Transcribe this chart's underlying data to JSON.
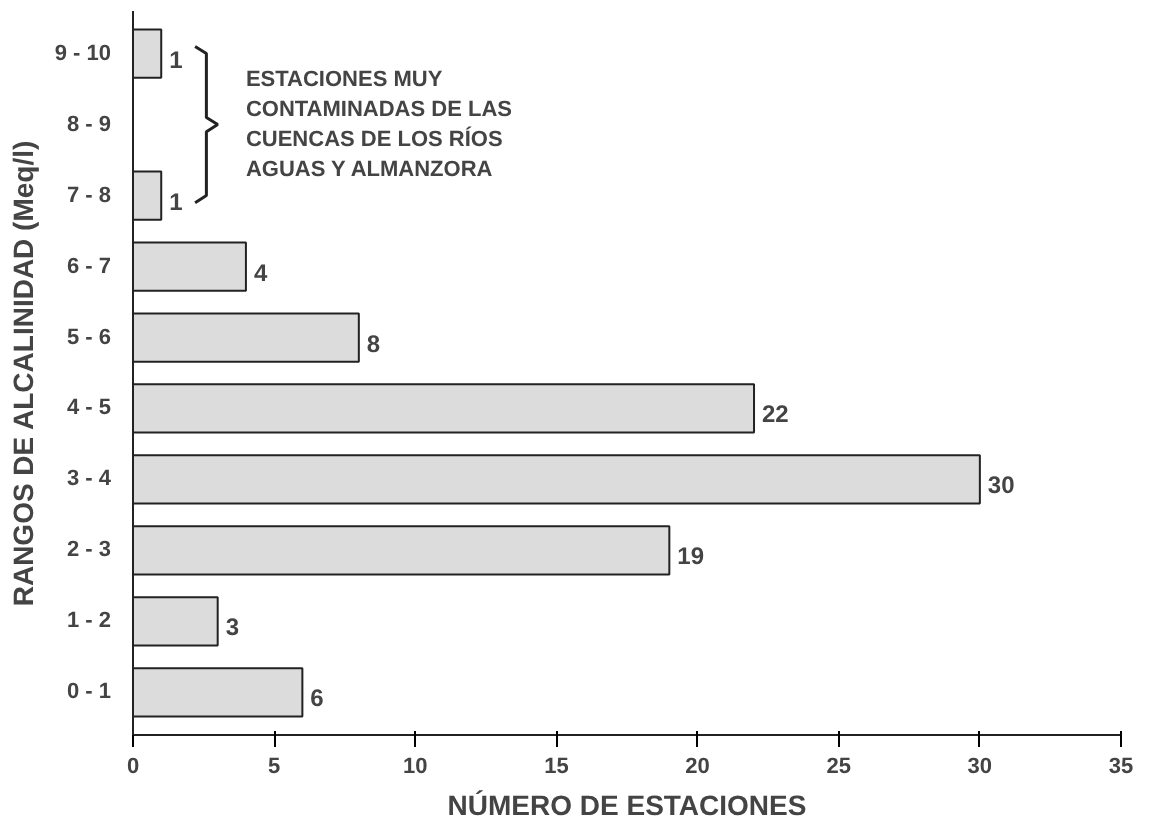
{
  "chart_data": {
    "type": "bar",
    "orientation": "horizontal",
    "xlabel": "NÚMERO DE ESTACIONES",
    "ylabel": "RANGOS DE ALCALINIDAD (Meq/l)",
    "categories": [
      "9 - 10",
      "8 - 9",
      "7 - 8",
      "6 - 7",
      "5 - 6",
      "4 - 5",
      "3 - 4",
      "2 - 3",
      "1 - 2",
      "0 - 1"
    ],
    "values": [
      1,
      null,
      1,
      4,
      8,
      22,
      30,
      19,
      3,
      6
    ],
    "color": "#dcdcdc",
    "data_labels": true,
    "xlim": [
      0,
      35
    ],
    "xticks": [
      0,
      5,
      10,
      15,
      20,
      25,
      30,
      35
    ],
    "grid": false,
    "annotations": [
      "ESTACIONES MUY\nCONTAMINADAS DE LAS\nCUENCAS DE LOS RÍOS\nAGUAS Y ALMANZORA"
    ]
  }
}
